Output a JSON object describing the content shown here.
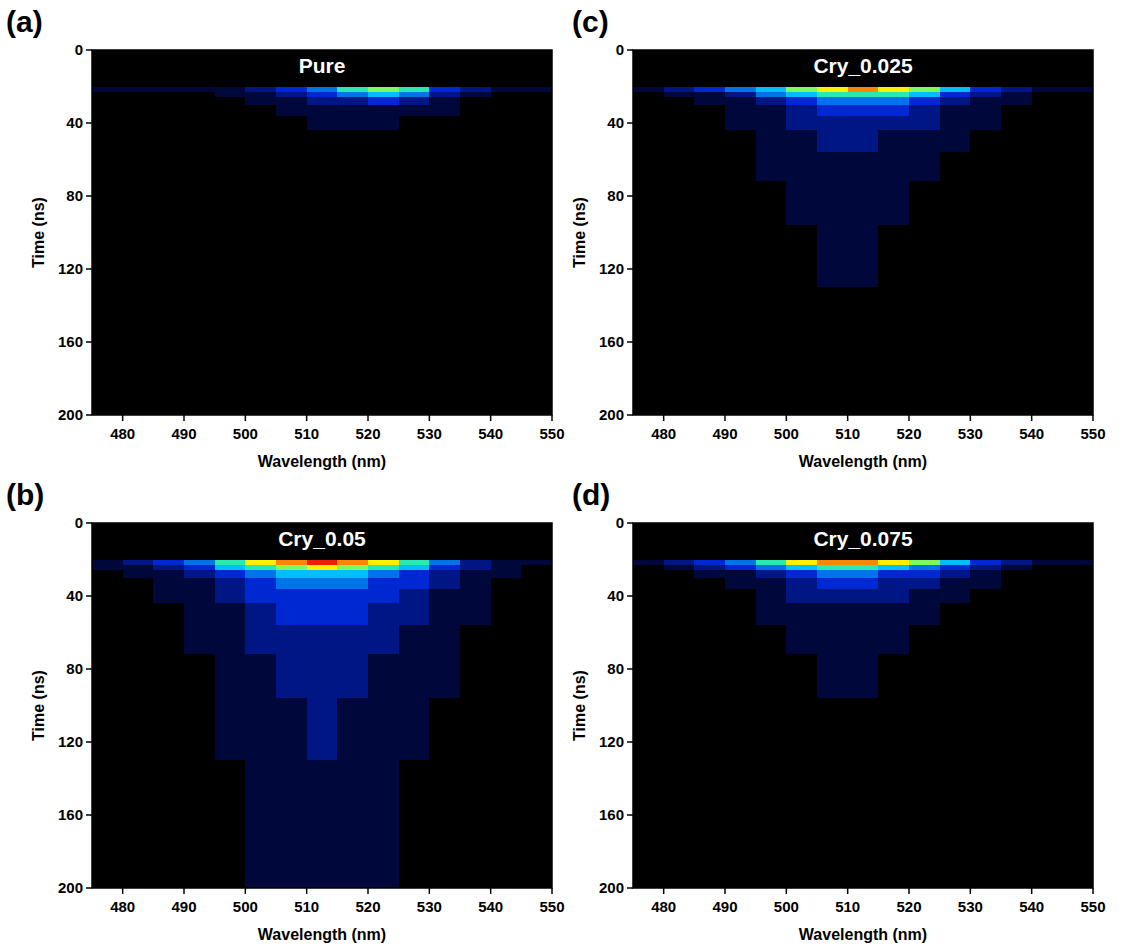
{
  "chart_data": [
    {
      "type": "heatmap",
      "panel_label": "(a)",
      "title": "Pure",
      "x_label": "Wavelength (nm)",
      "y_label": "Time (ns)",
      "xlim": [
        475,
        550
      ],
      "xticks": [
        480,
        490,
        500,
        510,
        520,
        530,
        540,
        550
      ],
      "ylim": [
        200,
        0
      ],
      "yticks": [
        0,
        40,
        80,
        120,
        160,
        200
      ],
      "x_bins": [
        475,
        480,
        485,
        490,
        495,
        500,
        505,
        510,
        515,
        520,
        525,
        530,
        535,
        540,
        545,
        550
      ],
      "y_bins": [
        0,
        20,
        23,
        26,
        30,
        36,
        44,
        56,
        72,
        96,
        130,
        200
      ],
      "color_range": [
        0,
        10
      ],
      "cells": [
        [
          0,
          0,
          0,
          0,
          0,
          0,
          0,
          0,
          0,
          0,
          0,
          0,
          0,
          0,
          0
        ],
        [
          1,
          1,
          1,
          1,
          1,
          2,
          3,
          4,
          6,
          7,
          6,
          3,
          2,
          1,
          1
        ],
        [
          0,
          0,
          0,
          0,
          1,
          1,
          2,
          3,
          4,
          5,
          4,
          2,
          1,
          0,
          0
        ],
        [
          0,
          0,
          0,
          0,
          0,
          1,
          1,
          2,
          2,
          3,
          2,
          1,
          0,
          0,
          0
        ],
        [
          0,
          0,
          0,
          0,
          0,
          0,
          1,
          1,
          1,
          1,
          1,
          1,
          0,
          0,
          0
        ],
        [
          0,
          0,
          0,
          0,
          0,
          0,
          0,
          1,
          1,
          1,
          0,
          0,
          0,
          0,
          0
        ],
        [
          0,
          0,
          0,
          0,
          0,
          0,
          0,
          0,
          0,
          0,
          0,
          0,
          0,
          0,
          0
        ],
        [
          0,
          0,
          0,
          0,
          0,
          0,
          0,
          0,
          0,
          0,
          0,
          0,
          0,
          0,
          0
        ],
        [
          0,
          0,
          0,
          0,
          0,
          0,
          0,
          0,
          0,
          0,
          0,
          0,
          0,
          0,
          0
        ],
        [
          0,
          0,
          0,
          0,
          0,
          0,
          0,
          0,
          0,
          0,
          0,
          0,
          0,
          0,
          0
        ],
        [
          0,
          0,
          0,
          0,
          0,
          0,
          0,
          0,
          0,
          0,
          0,
          0,
          0,
          0,
          0
        ]
      ]
    },
    {
      "type": "heatmap",
      "panel_label": "(b)",
      "title": "Cry_0.05",
      "x_label": "Wavelength (nm)",
      "y_label": "Time (ns)",
      "xlim": [
        475,
        550
      ],
      "xticks": [
        480,
        490,
        500,
        510,
        520,
        530,
        540,
        550
      ],
      "ylim": [
        200,
        0
      ],
      "yticks": [
        0,
        40,
        80,
        120,
        160,
        200
      ],
      "x_bins": [
        475,
        480,
        485,
        490,
        495,
        500,
        505,
        510,
        515,
        520,
        525,
        530,
        535,
        540,
        545,
        550
      ],
      "y_bins": [
        0,
        20,
        23,
        26,
        30,
        36,
        44,
        56,
        72,
        96,
        130,
        200
      ],
      "color_range": [
        0,
        10
      ],
      "cells": [
        [
          0,
          0,
          0,
          0,
          0,
          0,
          0,
          0,
          0,
          0,
          0,
          0,
          0,
          0,
          0
        ],
        [
          1,
          2,
          3,
          4,
          6,
          8,
          9,
          10,
          9,
          8,
          6,
          4,
          2,
          1,
          1
        ],
        [
          1,
          1,
          2,
          3,
          5,
          6,
          7,
          8,
          7,
          6,
          5,
          3,
          2,
          1,
          0
        ],
        [
          0,
          1,
          1,
          2,
          3,
          4,
          5,
          5,
          5,
          4,
          3,
          2,
          1,
          1,
          0
        ],
        [
          0,
          0,
          1,
          1,
          2,
          3,
          4,
          4,
          4,
          3,
          3,
          2,
          1,
          0,
          0
        ],
        [
          0,
          0,
          1,
          1,
          2,
          3,
          3,
          3,
          3,
          3,
          2,
          1,
          1,
          0,
          0
        ],
        [
          0,
          0,
          0,
          1,
          1,
          2,
          3,
          3,
          3,
          2,
          2,
          1,
          1,
          0,
          0
        ],
        [
          0,
          0,
          0,
          1,
          1,
          2,
          2,
          2,
          2,
          2,
          1,
          1,
          0,
          0,
          0
        ],
        [
          0,
          0,
          0,
          0,
          1,
          1,
          2,
          2,
          2,
          1,
          1,
          1,
          0,
          0,
          0
        ],
        [
          0,
          0,
          0,
          0,
          1,
          1,
          1,
          2,
          1,
          1,
          1,
          0,
          0,
          0,
          0
        ],
        [
          0,
          0,
          0,
          0,
          0,
          1,
          1,
          1,
          1,
          1,
          0,
          0,
          0,
          0,
          0
        ]
      ]
    },
    {
      "type": "heatmap",
      "panel_label": "(c)",
      "title": "Cry_0.025",
      "x_label": "Wavelength (nm)",
      "y_label": "Time (ns)",
      "xlim": [
        475,
        550
      ],
      "xticks": [
        480,
        490,
        500,
        510,
        520,
        530,
        540,
        550
      ],
      "ylim": [
        200,
        0
      ],
      "yticks": [
        0,
        40,
        80,
        120,
        160,
        200
      ],
      "x_bins": [
        475,
        480,
        485,
        490,
        495,
        500,
        505,
        510,
        515,
        520,
        525,
        530,
        535,
        540,
        545,
        550
      ],
      "y_bins": [
        0,
        20,
        23,
        26,
        30,
        36,
        44,
        56,
        72,
        96,
        130,
        200
      ],
      "color_range": [
        0,
        10
      ],
      "cells": [
        [
          0,
          0,
          0,
          0,
          0,
          0,
          0,
          0,
          0,
          0,
          0,
          0,
          0,
          0,
          0
        ],
        [
          1,
          2,
          3,
          4,
          5,
          7,
          8,
          9,
          8,
          7,
          5,
          3,
          2,
          1,
          1
        ],
        [
          0,
          1,
          1,
          2,
          4,
          5,
          6,
          6,
          6,
          5,
          3,
          2,
          1,
          0,
          0
        ],
        [
          0,
          0,
          1,
          1,
          2,
          3,
          4,
          4,
          4,
          3,
          2,
          1,
          1,
          0,
          0
        ],
        [
          0,
          0,
          0,
          1,
          1,
          2,
          3,
          3,
          3,
          2,
          1,
          1,
          0,
          0,
          0
        ],
        [
          0,
          0,
          0,
          1,
          1,
          2,
          2,
          2,
          2,
          2,
          1,
          1,
          0,
          0,
          0
        ],
        [
          0,
          0,
          0,
          0,
          1,
          1,
          2,
          2,
          1,
          1,
          1,
          0,
          0,
          0,
          0
        ],
        [
          0,
          0,
          0,
          0,
          1,
          1,
          1,
          1,
          1,
          1,
          0,
          0,
          0,
          0,
          0
        ],
        [
          0,
          0,
          0,
          0,
          0,
          1,
          1,
          1,
          1,
          0,
          0,
          0,
          0,
          0,
          0
        ],
        [
          0,
          0,
          0,
          0,
          0,
          0,
          1,
          1,
          0,
          0,
          0,
          0,
          0,
          0,
          0
        ],
        [
          0,
          0,
          0,
          0,
          0,
          0,
          0,
          0,
          0,
          0,
          0,
          0,
          0,
          0,
          0
        ]
      ]
    },
    {
      "type": "heatmap",
      "panel_label": "(d)",
      "title": "Cry_0.075",
      "x_label": "Wavelength (nm)",
      "y_label": "Time (ns)",
      "xlim": [
        475,
        550
      ],
      "xticks": [
        480,
        490,
        500,
        510,
        520,
        530,
        540,
        550
      ],
      "ylim": [
        200,
        0
      ],
      "yticks": [
        0,
        40,
        80,
        120,
        160,
        200
      ],
      "x_bins": [
        475,
        480,
        485,
        490,
        495,
        500,
        505,
        510,
        515,
        520,
        525,
        530,
        535,
        540,
        545,
        550
      ],
      "y_bins": [
        0,
        20,
        23,
        26,
        30,
        36,
        44,
        56,
        72,
        96,
        130,
        200
      ],
      "color_range": [
        0,
        10
      ],
      "cells": [
        [
          0,
          0,
          0,
          0,
          0,
          0,
          0,
          0,
          0,
          0,
          0,
          0,
          0,
          0,
          0
        ],
        [
          1,
          2,
          3,
          4,
          6,
          8,
          9,
          9,
          8,
          7,
          5,
          3,
          2,
          1,
          1
        ],
        [
          0,
          1,
          2,
          3,
          4,
          5,
          6,
          6,
          5,
          4,
          3,
          2,
          1,
          0,
          0
        ],
        [
          0,
          0,
          1,
          1,
          2,
          3,
          4,
          4,
          3,
          3,
          2,
          1,
          0,
          0,
          0
        ],
        [
          0,
          0,
          0,
          1,
          1,
          2,
          3,
          3,
          2,
          2,
          1,
          1,
          0,
          0,
          0
        ],
        [
          0,
          0,
          0,
          0,
          1,
          2,
          2,
          2,
          2,
          1,
          1,
          0,
          0,
          0,
          0
        ],
        [
          0,
          0,
          0,
          0,
          1,
          1,
          1,
          1,
          1,
          1,
          0,
          0,
          0,
          0,
          0
        ],
        [
          0,
          0,
          0,
          0,
          0,
          1,
          1,
          1,
          1,
          0,
          0,
          0,
          0,
          0,
          0
        ],
        [
          0,
          0,
          0,
          0,
          0,
          0,
          1,
          1,
          0,
          0,
          0,
          0,
          0,
          0,
          0
        ],
        [
          0,
          0,
          0,
          0,
          0,
          0,
          0,
          0,
          0,
          0,
          0,
          0,
          0,
          0,
          0
        ],
        [
          0,
          0,
          0,
          0,
          0,
          0,
          0,
          0,
          0,
          0,
          0,
          0,
          0,
          0,
          0
        ]
      ]
    }
  ]
}
